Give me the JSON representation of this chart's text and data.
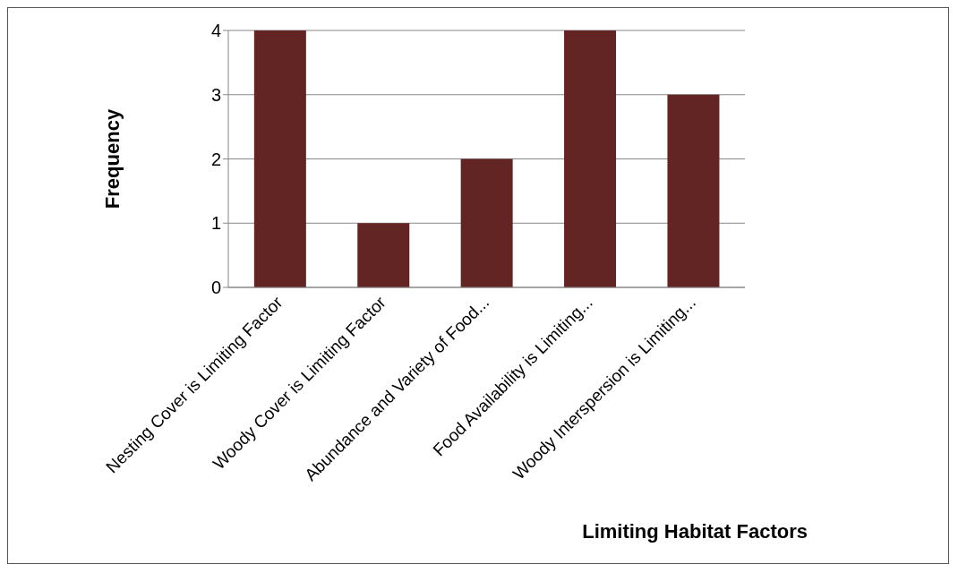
{
  "chart_data": {
    "type": "bar",
    "xlabel": "Limiting Habitat Factors",
    "ylabel": "Frequency",
    "categories": [
      "Nesting Cover is Limiting Factor",
      "Woody Cover is Limiting Factor",
      "Abundance and Variety of Food...",
      "Food Availability is Limiting...",
      "Woody Interspersion is Limiting..."
    ],
    "values": [
      4,
      1,
      2,
      4,
      3
    ],
    "color": "#632523",
    "ylim": [
      0,
      4
    ],
    "yticks": [
      0,
      1,
      2,
      3,
      4
    ],
    "grid": "y"
  }
}
